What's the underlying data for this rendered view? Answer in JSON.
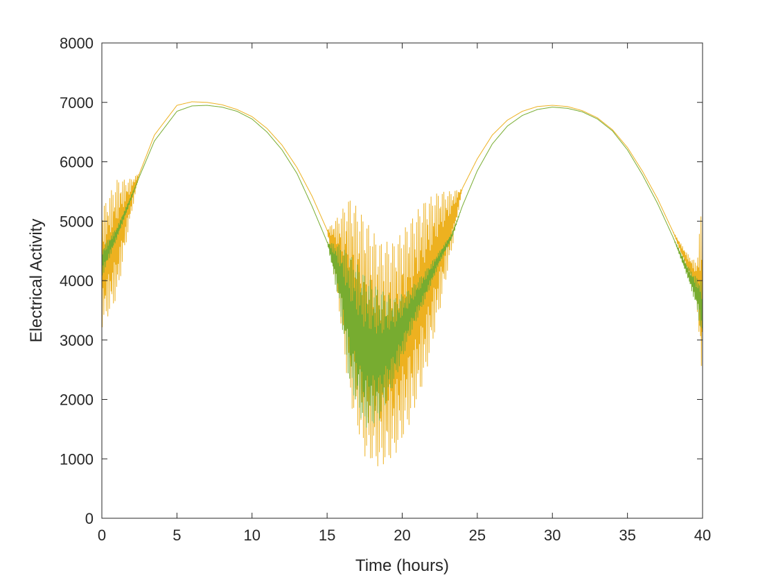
{
  "chart_data": {
    "type": "line",
    "title": "",
    "xlabel": "Time (hours)",
    "ylabel": "Electrical Activity",
    "xlim": [
      0,
      40
    ],
    "ylim": [
      0,
      8000
    ],
    "xticks": [
      0,
      5,
      10,
      15,
      20,
      25,
      30,
      35,
      40
    ],
    "yticks": [
      0,
      1000,
      2000,
      3000,
      4000,
      5000,
      6000,
      7000,
      8000
    ],
    "xtick_labels": [
      "0",
      "5",
      "10",
      "15",
      "20",
      "25",
      "30",
      "35",
      "40"
    ],
    "ytick_labels": [
      "0",
      "1000",
      "2000",
      "3000",
      "4000",
      "5000",
      "6000",
      "7000",
      "8000"
    ],
    "grid": false,
    "legend": "none",
    "series": [
      {
        "color": "#EDB120",
        "x": [
          0,
          1,
          1.8,
          2.5,
          3.5,
          5,
          6,
          7,
          8,
          9,
          10,
          11,
          12,
          13,
          14,
          15,
          15.8,
          16.5,
          17.5,
          18.5,
          19.5,
          20.5,
          21.5,
          22.5,
          23.3,
          24,
          25,
          26,
          27,
          28,
          29,
          30,
          31,
          32,
          33,
          34,
          35,
          36,
          37,
          38,
          39,
          39.6,
          40
        ],
        "y": [
          4200,
          4700,
          5300,
          5800,
          6450,
          6950,
          7010,
          7000,
          6960,
          6880,
          6760,
          6560,
          6280,
          5900,
          5420,
          4850,
          4300,
          3700,
          3050,
          2750,
          2850,
          3300,
          3850,
          4500,
          5000,
          5550,
          6050,
          6450,
          6700,
          6850,
          6930,
          6950,
          6930,
          6860,
          6740,
          6540,
          6240,
          5840,
          5380,
          4840,
          4300,
          4000,
          3700
        ],
        "spread": [
          1000,
          1000,
          400,
          0,
          0,
          0,
          0,
          0,
          0,
          0,
          0,
          0,
          0,
          0,
          0,
          0,
          800,
          1700,
          2000,
          1900,
          1800,
          1700,
          1500,
          1000,
          500,
          0,
          0,
          0,
          0,
          0,
          0,
          0,
          0,
          0,
          0,
          0,
          0,
          0,
          0,
          0,
          150,
          300,
          1700
        ]
      },
      {
        "color": "#77AC30",
        "x": [
          0,
          1,
          1.8,
          2.5,
          3.5,
          5,
          6,
          7,
          8,
          9,
          10,
          11,
          12,
          13,
          14,
          15,
          15.8,
          16.5,
          17.5,
          18.5,
          19.5,
          20.5,
          21.5,
          22.5,
          23.3,
          24,
          25,
          26,
          27,
          28,
          29,
          30,
          31,
          32,
          33,
          34,
          35,
          36,
          37,
          38,
          39,
          39.6,
          40
        ],
        "y": [
          4300,
          4800,
          5300,
          5750,
          6350,
          6850,
          6940,
          6950,
          6920,
          6850,
          6720,
          6500,
          6200,
          5800,
          5250,
          4650,
          4100,
          3350,
          2800,
          2750,
          3000,
          3450,
          3900,
          4400,
          4750,
          5250,
          5850,
          6300,
          6600,
          6780,
          6880,
          6920,
          6900,
          6840,
          6720,
          6520,
          6200,
          5780,
          5300,
          4750,
          4150,
          3800,
          3500
        ],
        "spread": [
          250,
          100,
          50,
          0,
          0,
          0,
          0,
          0,
          0,
          0,
          0,
          0,
          0,
          0,
          0,
          0,
          500,
          1100,
          1300,
          1100,
          700,
          400,
          250,
          100,
          50,
          0,
          0,
          0,
          0,
          0,
          0,
          0,
          0,
          0,
          0,
          0,
          0,
          0,
          0,
          0,
          100,
          250,
          500
        ]
      },
      {
        "color": "#4DBEEE",
        "x": [
          0,
          40
        ],
        "y": [
          0,
          0
        ],
        "spread": [
          0,
          0
        ]
      },
      {
        "color": "#0072BD",
        "x": [
          0,
          40
        ],
        "y": [
          0,
          0
        ],
        "spread": [
          0,
          0
        ]
      }
    ]
  }
}
